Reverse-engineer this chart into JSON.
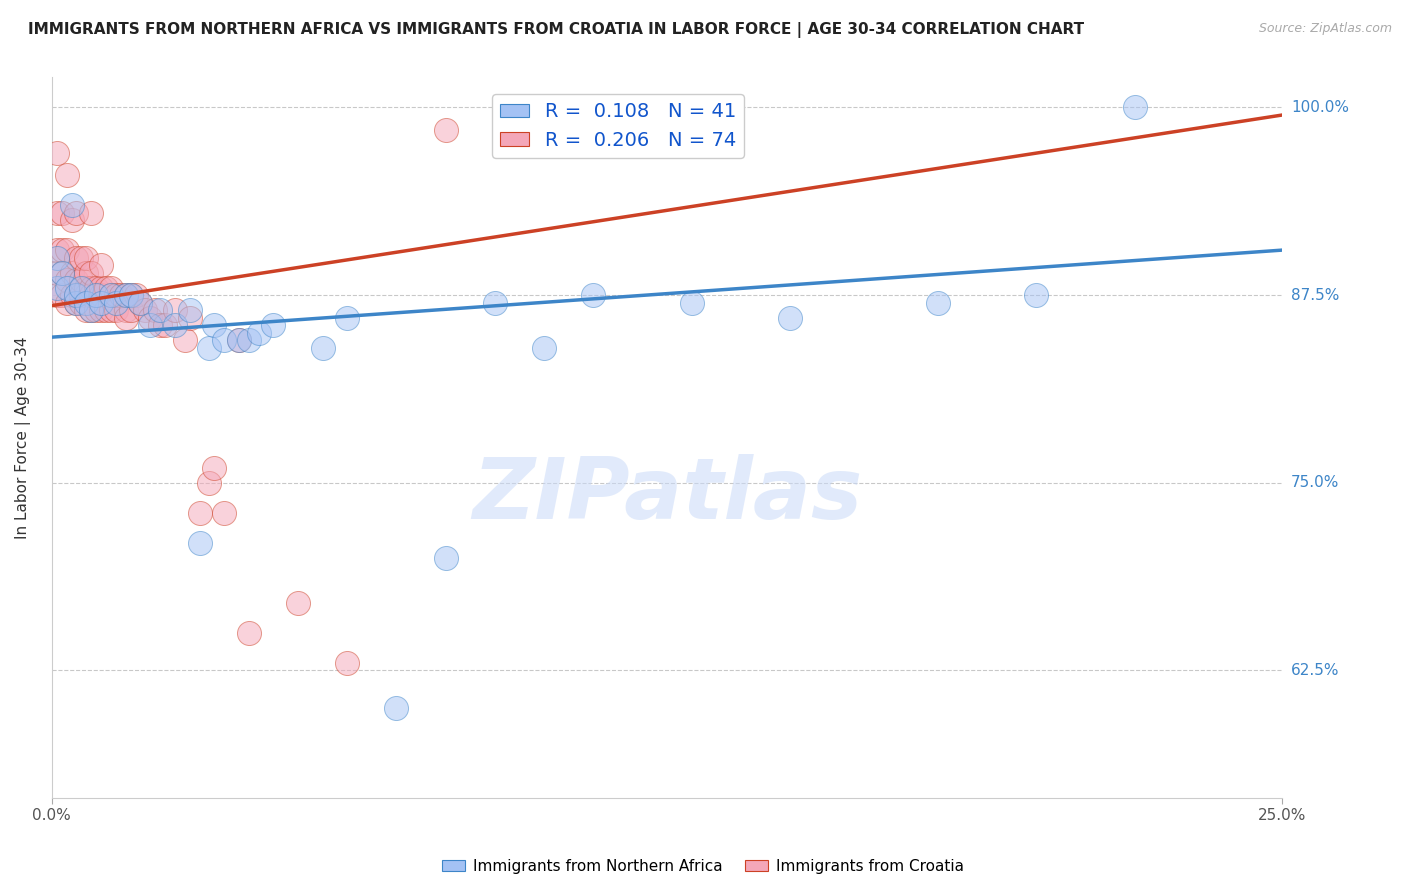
{
  "title": "IMMIGRANTS FROM NORTHERN AFRICA VS IMMIGRANTS FROM CROATIA IN LABOR FORCE | AGE 30-34 CORRELATION CHART",
  "source": "Source: ZipAtlas.com",
  "ylabel": "In Labor Force | Age 30-34",
  "xlim": [
    0.0,
    0.25
  ],
  "ylim": [
    0.54,
    1.02
  ],
  "yticks": [
    0.625,
    0.75,
    0.875,
    1.0
  ],
  "ytick_labels": [
    "62.5%",
    "75.0%",
    "87.5%",
    "100.0%"
  ],
  "xticks": [
    0.0,
    0.25
  ],
  "xtick_labels": [
    "0.0%",
    "25.0%"
  ],
  "legend_blue_label": "R =  0.108   N = 41",
  "legend_pink_label": "R =  0.206   N = 74",
  "blue_color": "#a4c2f4",
  "pink_color": "#f4a7b9",
  "blue_line_color": "#3d85c8",
  "pink_line_color": "#cc4125",
  "watermark": "ZIPatlas",
  "watermark_color": "#c9daf8",
  "blue_points_x": [
    0.001,
    0.001,
    0.002,
    0.003,
    0.004,
    0.005,
    0.005,
    0.006,
    0.007,
    0.008,
    0.009,
    0.01,
    0.012,
    0.013,
    0.015,
    0.016,
    0.018,
    0.02,
    0.022,
    0.025,
    0.028,
    0.03,
    0.032,
    0.033,
    0.035,
    0.038,
    0.04,
    0.042,
    0.045,
    0.055,
    0.06,
    0.07,
    0.08,
    0.09,
    0.1,
    0.11,
    0.13,
    0.15,
    0.18,
    0.2,
    0.22
  ],
  "blue_points_y": [
    0.88,
    0.9,
    0.89,
    0.88,
    0.935,
    0.87,
    0.875,
    0.88,
    0.87,
    0.865,
    0.875,
    0.87,
    0.875,
    0.87,
    0.875,
    0.875,
    0.87,
    0.855,
    0.865,
    0.855,
    0.865,
    0.71,
    0.84,
    0.855,
    0.845,
    0.845,
    0.845,
    0.85,
    0.855,
    0.84,
    0.86,
    0.6,
    0.7,
    0.87,
    0.84,
    0.875,
    0.87,
    0.86,
    0.87,
    0.875,
    1.0
  ],
  "pink_points_x": [
    0.001,
    0.001,
    0.001,
    0.001,
    0.001,
    0.002,
    0.002,
    0.002,
    0.002,
    0.003,
    0.003,
    0.003,
    0.003,
    0.004,
    0.004,
    0.004,
    0.005,
    0.005,
    0.005,
    0.005,
    0.005,
    0.006,
    0.006,
    0.006,
    0.006,
    0.007,
    0.007,
    0.007,
    0.007,
    0.007,
    0.008,
    0.008,
    0.008,
    0.008,
    0.008,
    0.009,
    0.009,
    0.009,
    0.01,
    0.01,
    0.01,
    0.01,
    0.011,
    0.011,
    0.012,
    0.012,
    0.012,
    0.013,
    0.013,
    0.014,
    0.015,
    0.015,
    0.015,
    0.016,
    0.016,
    0.017,
    0.018,
    0.019,
    0.02,
    0.021,
    0.022,
    0.023,
    0.025,
    0.027,
    0.028,
    0.03,
    0.032,
    0.033,
    0.035,
    0.038,
    0.04,
    0.05,
    0.06,
    0.08
  ],
  "pink_points_y": [
    0.875,
    0.89,
    0.905,
    0.93,
    0.97,
    0.875,
    0.89,
    0.905,
    0.93,
    0.87,
    0.885,
    0.905,
    0.955,
    0.875,
    0.89,
    0.925,
    0.87,
    0.875,
    0.885,
    0.9,
    0.93,
    0.87,
    0.875,
    0.885,
    0.9,
    0.865,
    0.875,
    0.88,
    0.89,
    0.9,
    0.865,
    0.875,
    0.88,
    0.89,
    0.93,
    0.865,
    0.875,
    0.88,
    0.865,
    0.875,
    0.88,
    0.895,
    0.865,
    0.88,
    0.865,
    0.875,
    0.88,
    0.865,
    0.875,
    0.875,
    0.865,
    0.875,
    0.86,
    0.865,
    0.875,
    0.875,
    0.87,
    0.865,
    0.86,
    0.865,
    0.855,
    0.855,
    0.865,
    0.845,
    0.86,
    0.73,
    0.75,
    0.76,
    0.73,
    0.845,
    0.65,
    0.67,
    0.63,
    0.985
  ],
  "blue_trend_x": [
    0.0,
    0.25
  ],
  "blue_trend_y": [
    0.847,
    0.905
  ],
  "pink_trend_x": [
    0.0,
    0.25
  ],
  "pink_trend_y": [
    0.868,
    0.995
  ]
}
